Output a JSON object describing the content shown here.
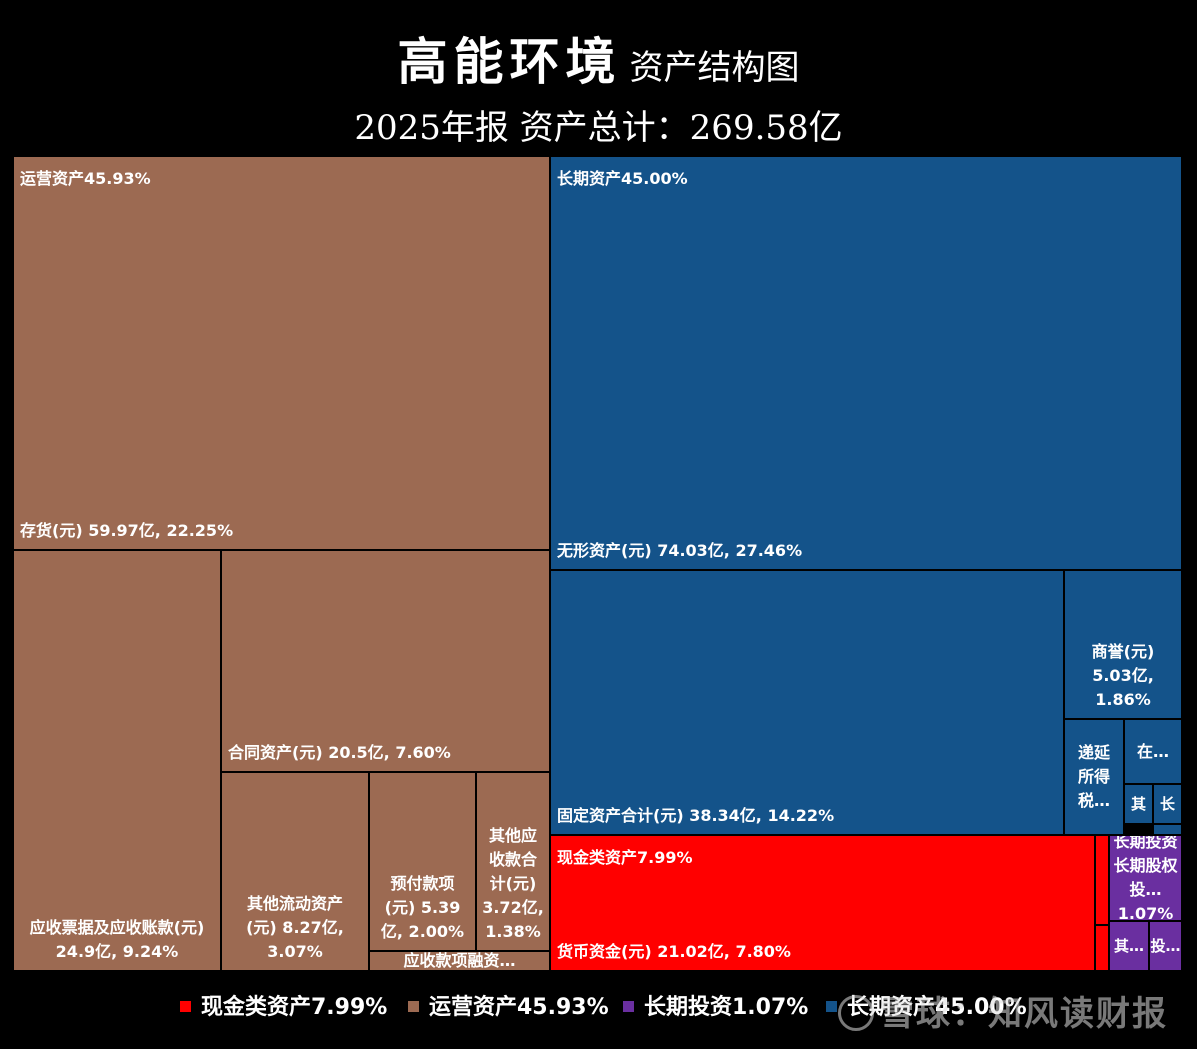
{
  "header": {
    "company": "高能环境",
    "subtitle_suffix": "资产结构图",
    "period_total": "2025年报 资产总计：269.58亿"
  },
  "colors": {
    "cash": "#ff0000",
    "operating": "#9c6a52",
    "long_term_investment": "#6a2fa0",
    "long_term": "#14538a",
    "background": "#000000"
  },
  "legend": [
    {
      "label": "现金类资产7.99%",
      "group": "cash"
    },
    {
      "label": "运营资产45.93%",
      "group": "operating"
    },
    {
      "label": "长期投资1.07%",
      "group": "long_term_investment"
    },
    {
      "label": "长期资产45.00%",
      "group": "long_term"
    }
  ],
  "watermark": "雪球：知风读财报",
  "chart_data": {
    "type": "treemap",
    "title": "高能环境 资产结构图",
    "subtitle": "2025年报 资产总计：269.58亿",
    "total": 269.58,
    "unit": "亿",
    "groups": [
      {
        "key": "operating",
        "label": "运营资产45.93%",
        "share": 45.93
      },
      {
        "key": "long_term",
        "label": "长期资产45.00%",
        "share": 45.0
      },
      {
        "key": "cash",
        "label": "现金类资产7.99%",
        "share": 7.99
      },
      {
        "key": "long_term_investment",
        "label": "长期投资1.07%",
        "share": 1.07
      }
    ],
    "items": [
      {
        "group": "operating",
        "label": "存货(元)   59.97亿, 22.25%",
        "value": 59.97,
        "percent": 22.25
      },
      {
        "group": "operating",
        "label": "应收票据及应收账款(元)\n24.9亿, 9.24%",
        "value": 24.9,
        "percent": 9.24
      },
      {
        "group": "operating",
        "label": "合同资产(元)   20.5亿, 7.60%",
        "value": 20.5,
        "percent": 7.6
      },
      {
        "group": "operating",
        "label": "其他流动资产\n(元)   8.27亿,\n3.07%",
        "value": 8.27,
        "percent": 3.07
      },
      {
        "group": "operating",
        "label": "预付款项\n(元)   5.39\n亿, 2.00%",
        "value": 5.39,
        "percent": 2.0
      },
      {
        "group": "operating",
        "label": "其他应\n收款合\n计(元)\n3.72亿,\n1.38%",
        "value": 3.72,
        "percent": 1.38
      },
      {
        "group": "operating",
        "label": "应收款项融资…",
        "value": null,
        "percent": null
      },
      {
        "group": "long_term",
        "label": "无形资产(元)   74.03亿, 27.46%",
        "value": 74.03,
        "percent": 27.46
      },
      {
        "group": "long_term",
        "label": "固定资产合计(元)   38.34亿, 14.22%",
        "value": 38.34,
        "percent": 14.22
      },
      {
        "group": "long_term",
        "label": "商誉(元)\n5.03亿,\n1.86%",
        "value": 5.03,
        "percent": 1.86
      },
      {
        "group": "long_term",
        "label": "递延\n所得\n税…",
        "value": null,
        "percent": null
      },
      {
        "group": "long_term",
        "label": "在…",
        "value": null,
        "percent": null
      },
      {
        "group": "long_term",
        "label": "其",
        "value": null,
        "percent": null
      },
      {
        "group": "long_term",
        "label": "长",
        "value": null,
        "percent": null
      },
      {
        "group": "long_term",
        "label": "",
        "value": null,
        "percent": null
      },
      {
        "group": "cash",
        "label": "货币资金(元)   21.02亿, 7.80%",
        "value": 21.02,
        "percent": 7.8
      },
      {
        "group": "cash",
        "label": "",
        "value": null,
        "percent": null
      },
      {
        "group": "cash",
        "label": "",
        "value": null,
        "percent": null
      },
      {
        "group": "long_term_investment",
        "label": "长期投资\n长期股权投…\n1.07%",
        "value": null,
        "percent": 1.07
      },
      {
        "group": "long_term_investment",
        "label": "其…",
        "value": null,
        "percent": null
      },
      {
        "group": "long_term_investment",
        "label": "投…",
        "value": null,
        "percent": null
      }
    ]
  }
}
